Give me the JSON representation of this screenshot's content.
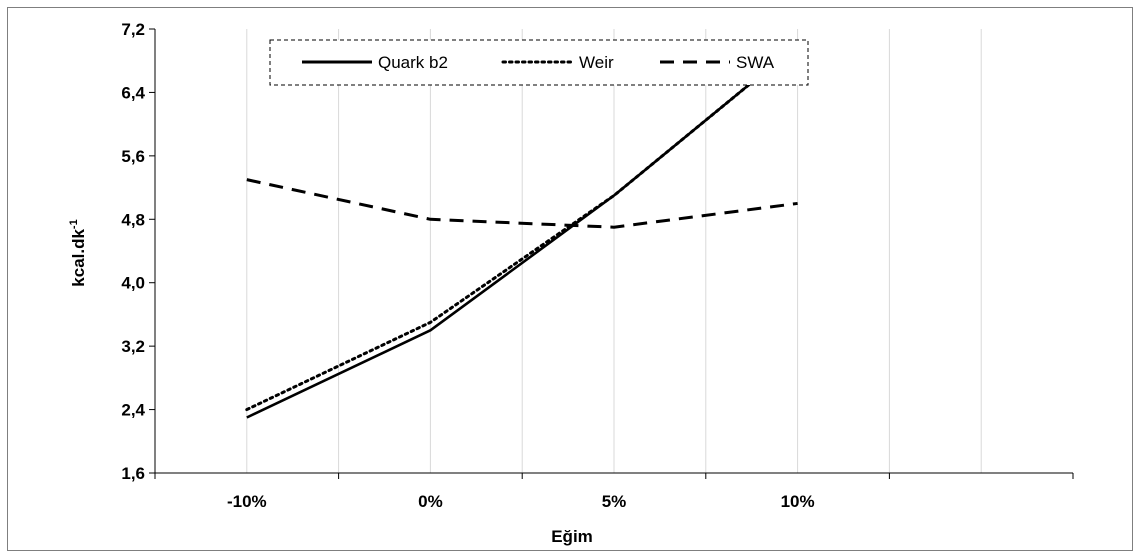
{
  "chart_data": {
    "type": "line",
    "categories": [
      "-10%",
      "0%",
      "5%",
      "10%"
    ],
    "series": [
      {
        "name": "Quark b2",
        "values": [
          2.3,
          3.4,
          5.1,
          7.0
        ],
        "style": "solid"
      },
      {
        "name": "Weir",
        "values": [
          2.4,
          3.5,
          5.1,
          7.0
        ],
        "style": "dotted"
      },
      {
        "name": "SWA",
        "values": [
          5.3,
          4.8,
          4.7,
          5.0
        ],
        "style": "dashed"
      }
    ],
    "xlabel": "Eğim",
    "ylabel": "kcal.dk",
    "ylabel_superscript": "-1",
    "ylim": [
      1.6,
      7.2
    ],
    "yticks": [
      "1,6",
      "2,4",
      "3,2",
      "4,0",
      "4,8",
      "5,6",
      "6,4",
      "7,2"
    ],
    "grid": "vertical",
    "legend_position": "top-left",
    "colors": {
      "line": "#000000",
      "grid": "#d9d9d9",
      "frame": "#7f7f7f"
    }
  }
}
